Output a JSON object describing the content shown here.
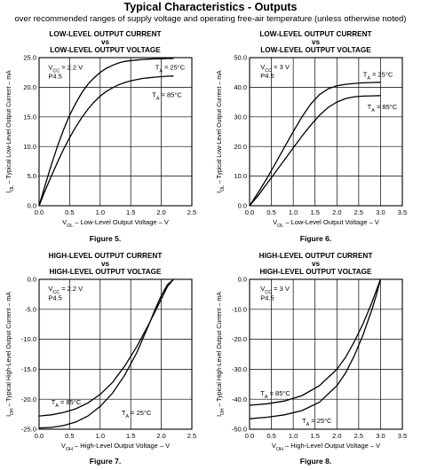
{
  "header": {
    "title": "Typical Characteristics - Outputs",
    "subtitle": "over recommended ranges of supply voltage and operating free-air temperature (unless otherwise noted)"
  },
  "chart_data": [
    {
      "type": "line",
      "title": [
        "LOW-LEVEL OUTPUT CURRENT",
        "vs",
        "LOW-LEVEL OUTPUT VOLTAGE"
      ],
      "figure": "Figure 5.",
      "xlabel": "V_OL – Low-Level Output Voltage – V",
      "ylabel": "I_OL – Typical Low-Level Output Current – mA",
      "xlim": [
        0,
        2.5
      ],
      "ylim": [
        0,
        25
      ],
      "xticks": [
        0,
        0.5,
        1,
        1.5,
        2,
        2.5
      ],
      "xtick_labels": [
        "0.0",
        "0.5",
        "1.0",
        "1.5",
        "2.0",
        "2.5"
      ],
      "yticks": [
        0,
        5,
        10,
        15,
        20,
        25
      ],
      "ytick_labels": [
        "0.0",
        "5.0",
        "10.0",
        "15.0",
        "20.0",
        "25.0"
      ],
      "grid": true,
      "annotations": [
        {
          "text": "V_CC = 2.2 V",
          "x": 0.15,
          "y": 23.4
        },
        {
          "text": "P4.5",
          "x": 0.15,
          "y": 21.9
        },
        {
          "text": "T_A = 25°C",
          "x": 1.9,
          "y": 23.4
        },
        {
          "text": "T_A = 85°C",
          "x": 1.85,
          "y": 18.8
        }
      ],
      "series": [
        {
          "name": "T_A = 25°C",
          "x": [
            0,
            0.1,
            0.2,
            0.3,
            0.4,
            0.5,
            0.6,
            0.7,
            0.8,
            0.9,
            1.0,
            1.1,
            1.2,
            1.3,
            1.4,
            1.5,
            1.6,
            1.7,
            1.8,
            1.9,
            2.0,
            2.1,
            2.2
          ],
          "y": [
            0,
            3.5,
            6.9,
            10.0,
            12.8,
            15.3,
            17.3,
            19.1,
            20.5,
            21.6,
            22.5,
            23.2,
            23.7,
            24.1,
            24.35,
            24.5,
            24.6,
            24.7,
            24.75,
            24.8,
            24.8,
            24.85,
            24.85
          ]
        },
        {
          "name": "T_A = 85°C",
          "x": [
            0,
            0.1,
            0.2,
            0.3,
            0.4,
            0.5,
            0.6,
            0.7,
            0.8,
            0.9,
            1.0,
            1.1,
            1.2,
            1.3,
            1.4,
            1.5,
            1.6,
            1.7,
            1.8,
            1.9,
            2.0,
            2.1,
            2.2
          ],
          "y": [
            0,
            2.6,
            5.0,
            7.3,
            9.5,
            11.5,
            13.3,
            14.9,
            16.3,
            17.5,
            18.5,
            19.3,
            19.9,
            20.4,
            20.8,
            21.1,
            21.3,
            21.5,
            21.6,
            21.7,
            21.8,
            21.85,
            21.9
          ]
        }
      ]
    },
    {
      "type": "line",
      "title": [
        "LOW-LEVEL OUTPUT CURRENT",
        "vs",
        "LOW-LEVEL OUTPUT VOLTAGE"
      ],
      "figure": "Figure 6.",
      "xlabel": "V_OL – Low-Level Output Voltage – V",
      "ylabel": "I_OL – Typical Low-Level Output Current – mA",
      "xlim": [
        0,
        3.5
      ],
      "ylim": [
        0,
        50
      ],
      "xticks": [
        0,
        0.5,
        1,
        1.5,
        2,
        2.5,
        3,
        3.5
      ],
      "xtick_labels": [
        "0.0",
        "0.5",
        "1.0",
        "1.5",
        "2.0",
        "2.5",
        "3.0",
        "3.5"
      ],
      "yticks": [
        0,
        10,
        20,
        30,
        40,
        50
      ],
      "ytick_labels": [
        "0.0",
        "10.0",
        "20.0",
        "30.0",
        "40.0",
        "50.0"
      ],
      "grid": true,
      "annotations": [
        {
          "text": "V_CC = 3 V",
          "x": 0.25,
          "y": 47
        },
        {
          "text": "P4.5",
          "x": 0.25,
          "y": 44
        },
        {
          "text": "T_A = 25°C",
          "x": 2.6,
          "y": 44.5
        },
        {
          "text": "T_A = 85°C",
          "x": 2.7,
          "y": 33.5
        }
      ],
      "series": [
        {
          "name": "T_A = 25°C",
          "x": [
            0,
            0.2,
            0.4,
            0.6,
            0.8,
            1.0,
            1.2,
            1.4,
            1.6,
            1.8,
            2.0,
            2.2,
            2.4,
            2.6,
            2.8,
            3.0
          ],
          "y": [
            0,
            4.5,
            9.3,
            14.5,
            19.8,
            25.0,
            30.0,
            34.3,
            37.5,
            39.5,
            40.5,
            41.0,
            41.3,
            41.5,
            41.6,
            41.7
          ]
        },
        {
          "name": "T_A = 85°C",
          "x": [
            0,
            0.2,
            0.4,
            0.6,
            0.8,
            1.0,
            1.2,
            1.4,
            1.6,
            1.8,
            2.0,
            2.2,
            2.4,
            2.6,
            2.8,
            3.0
          ],
          "y": [
            0,
            3.5,
            7.5,
            11.5,
            15.5,
            19.5,
            23.5,
            27.2,
            30.5,
            33.2,
            35.0,
            36.2,
            36.8,
            37.0,
            37.1,
            37.2
          ]
        }
      ]
    },
    {
      "type": "line",
      "title": [
        "HIGH-LEVEL OUTPUT CURRENT",
        "vs",
        "HIGH-LEVEL OUTPUT VOLTAGE"
      ],
      "figure": "Figure 7.",
      "xlabel": "V_OH – High-Level Output Voltage – V",
      "ylabel": "I_OH – Typical High-Level Output Current – mA",
      "xlim": [
        0,
        2.5
      ],
      "ylim": [
        -25,
        0
      ],
      "xticks": [
        0,
        0.5,
        1,
        1.5,
        2,
        2.5
      ],
      "xtick_labels": [
        "0.0",
        "0.5",
        "1.0",
        "1.5",
        "2.0",
        "2.5"
      ],
      "yticks": [
        -25,
        -20,
        -15,
        -10,
        -5,
        0
      ],
      "ytick_labels": [
        "-25.0",
        "-20.0",
        "-15.0",
        "-10.0",
        "-5.0",
        "0.0"
      ],
      "grid": true,
      "annotations": [
        {
          "text": "V_CC = 2.2 V",
          "x": 0.15,
          "y": -1.5
        },
        {
          "text": "P4.5",
          "x": 0.15,
          "y": -3.0
        },
        {
          "text": "T_A = 85°C",
          "x": 0.2,
          "y": -20.4
        },
        {
          "text": "T_A = 25°C",
          "x": 1.35,
          "y": -22.2
        }
      ],
      "series": [
        {
          "name": "T_A = 85°C",
          "x": [
            0,
            0.2,
            0.4,
            0.6,
            0.8,
            1.0,
            1.2,
            1.4,
            1.6,
            1.8,
            2.0,
            2.1,
            2.2
          ],
          "y": [
            -22.8,
            -22.6,
            -22.2,
            -21.6,
            -20.6,
            -19.2,
            -17.2,
            -14.5,
            -11.2,
            -7.4,
            -3.3,
            -1.2,
            0
          ]
        },
        {
          "name": "T_A = 25°C",
          "x": [
            0,
            0.2,
            0.4,
            0.6,
            0.8,
            1.0,
            1.2,
            1.4,
            1.6,
            1.8,
            1.9,
            2.0,
            2.1,
            2.2
          ],
          "y": [
            -24.8,
            -24.7,
            -24.4,
            -23.8,
            -22.8,
            -21.2,
            -19.0,
            -16.0,
            -12.2,
            -7.5,
            -5.0,
            -2.7,
            -0.9,
            0
          ]
        }
      ]
    },
    {
      "type": "line",
      "title": [
        "HIGH-LEVEL OUTPUT CURRENT",
        "vs",
        "HIGH-LEVEL OUTPUT VOLTAGE"
      ],
      "figure": "Figure 8.",
      "xlabel": "V_OH – High-Level Output Voltage – V",
      "ylabel": "I_OH – Typical High-Level Output Current – mA",
      "xlim": [
        0,
        3.5
      ],
      "ylim": [
        -50,
        0
      ],
      "xticks": [
        0,
        0.5,
        1,
        1.5,
        2,
        2.5,
        3,
        3.5
      ],
      "xtick_labels": [
        "0.0",
        "0.5",
        "1.0",
        "1.5",
        "2.0",
        "2.5",
        "3.0",
        "3.5"
      ],
      "yticks": [
        -50,
        -40,
        -30,
        -20,
        -10,
        0
      ],
      "ytick_labels": [
        "-50.0",
        "-40.0",
        "-30.0",
        "-20.0",
        "-10.0",
        "0.0"
      ],
      "grid": true,
      "annotations": [
        {
          "text": "V_CC = 3 V",
          "x": 0.25,
          "y": -3
        },
        {
          "text": "P4.5",
          "x": 0.25,
          "y": -6
        },
        {
          "text": "T_A = 85°C",
          "x": 0.25,
          "y": -37.8
        },
        {
          "text": "T_A = 25°C",
          "x": 1.2,
          "y": -47
        }
      ],
      "series": [
        {
          "name": "T_A = 85°C",
          "x": [
            0,
            0.4,
            0.8,
            1.2,
            1.6,
            2.0,
            2.2,
            2.4,
            2.6,
            2.8,
            2.9,
            3.0
          ],
          "y": [
            -42.0,
            -41.5,
            -40.6,
            -38.8,
            -35.5,
            -30.0,
            -26.0,
            -20.8,
            -14.8,
            -7.8,
            -3.9,
            0
          ]
        },
        {
          "name": "T_A = 25°C",
          "x": [
            0,
            0.4,
            0.8,
            1.2,
            1.6,
            2.0,
            2.2,
            2.4,
            2.6,
            2.8,
            2.9,
            3.0
          ],
          "y": [
            -46.5,
            -46.0,
            -45.2,
            -43.8,
            -41.0,
            -35.5,
            -31.2,
            -25.5,
            -18.5,
            -10.2,
            -5.5,
            0
          ]
        }
      ]
    }
  ]
}
